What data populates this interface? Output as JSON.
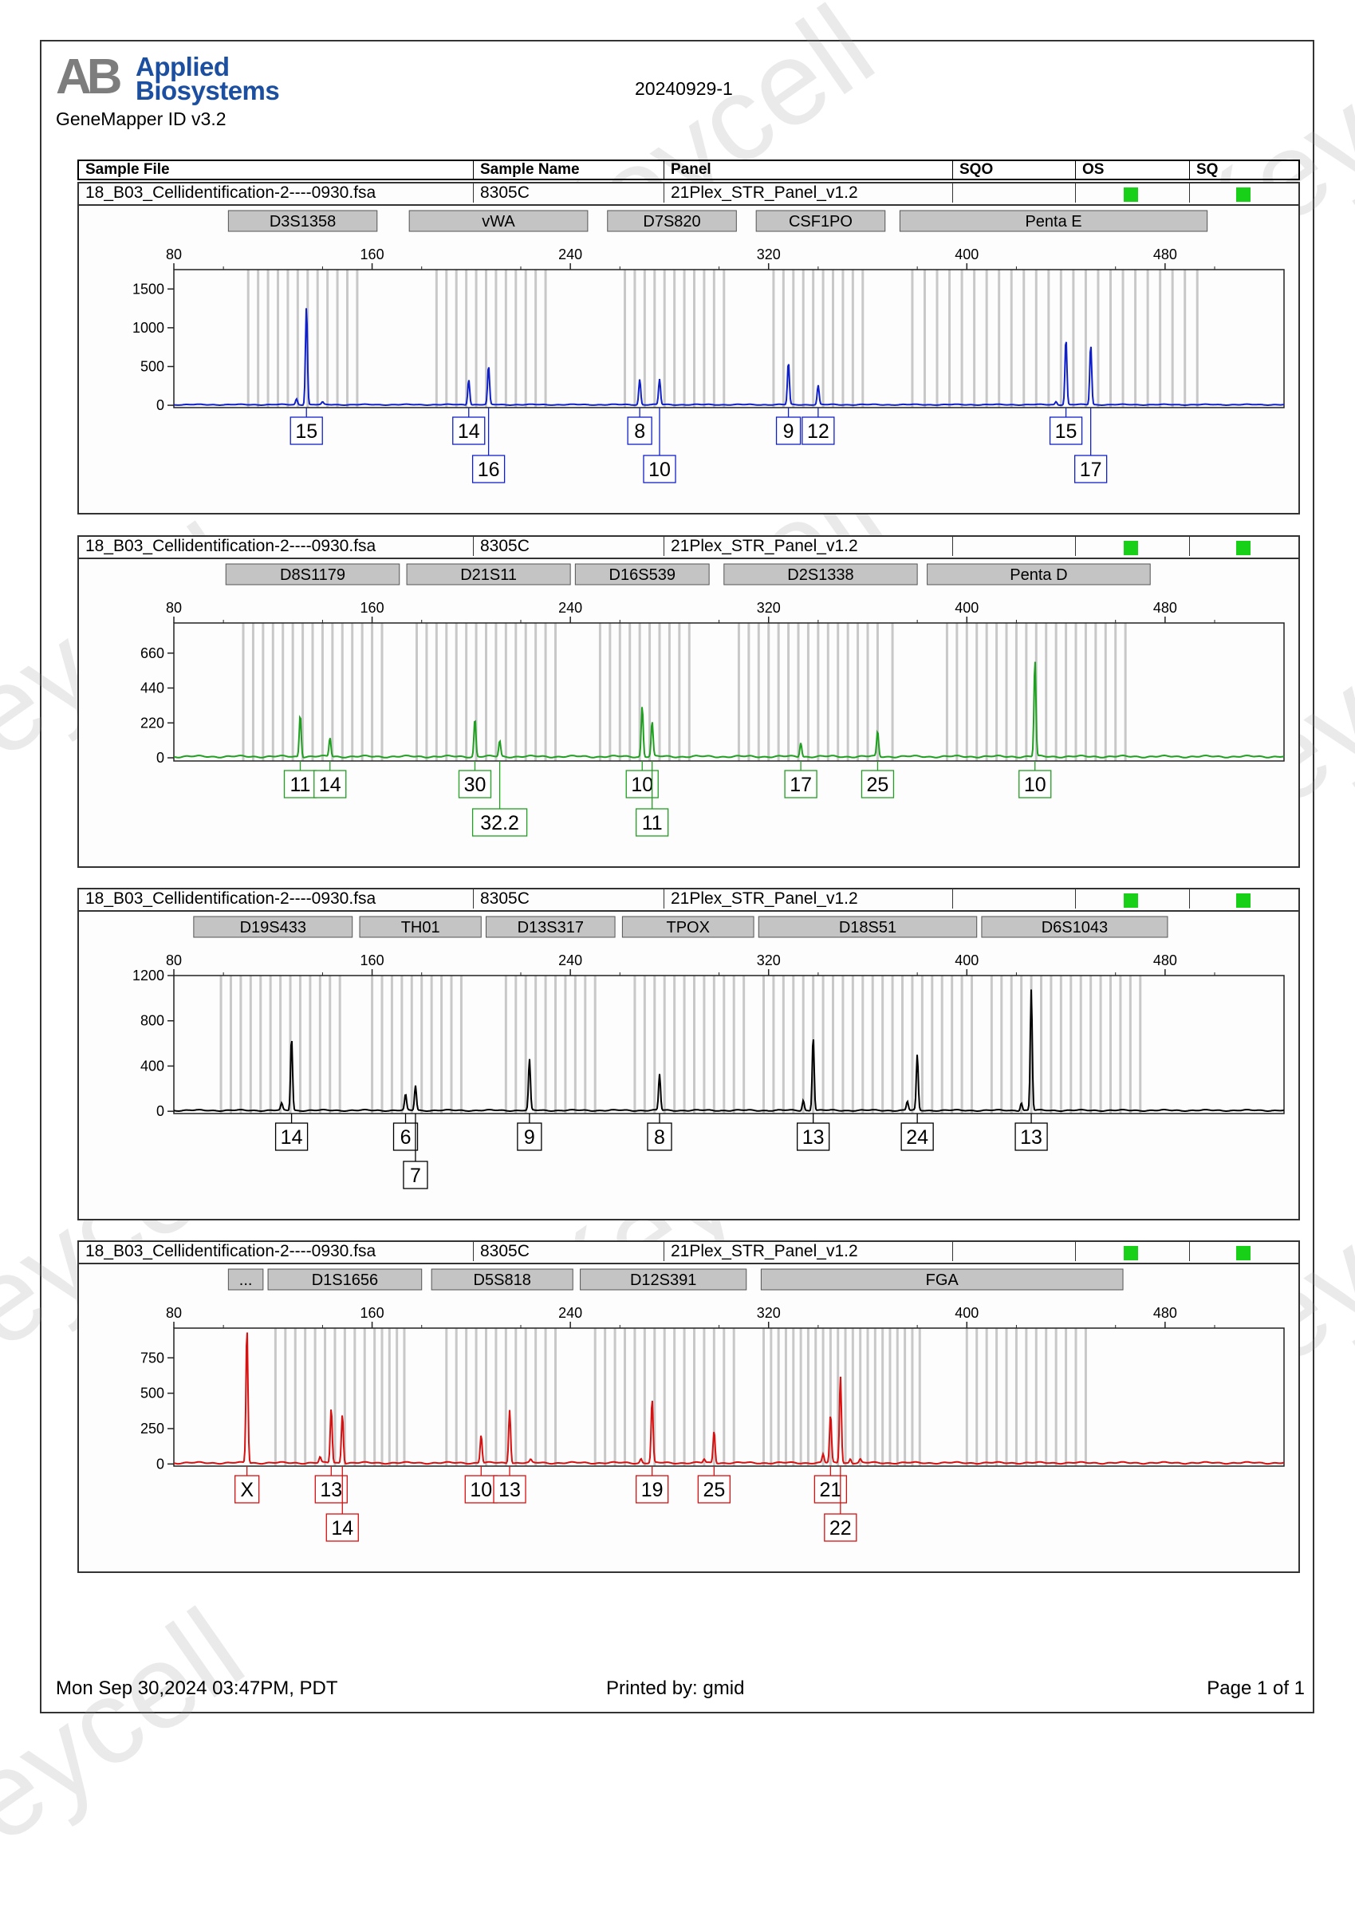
{
  "header": {
    "logo_ab": "AB",
    "logo_line1": "Applied",
    "logo_line2": "Biosystems",
    "software": "GeneMapper ID v3.2",
    "run_name": "20240929-1",
    "columns": [
      "Sample File",
      "Sample Name",
      "Panel",
      "SQO",
      "OS",
      "SQ"
    ]
  },
  "footer": {
    "date": "Mon Sep 30,2024 03:47PM, PDT",
    "printed_by": "Printed by: gmid",
    "page": "Page 1 of 1"
  },
  "watermark_text": "Keycell",
  "colors": {
    "blue": "#1020c8",
    "green": "#20a020",
    "black": "#000000",
    "red": "#d81010",
    "bin": "#c8c8c8",
    "qc_green": "#18d018"
  },
  "chart_data": [
    {
      "type": "line",
      "sample_file": "18_B03_Cellidentification-2----0930.fsa",
      "sample_name": "8305C",
      "panel": "21Plex_STR_Panel_v1.2",
      "dye_color": "#1020c8",
      "xlim": [
        80,
        528
      ],
      "x_ticks": [
        80,
        160,
        240,
        320,
        400,
        480
      ],
      "ylim": [
        -30,
        1750
      ],
      "y_ticks": [
        0,
        500,
        1000,
        1500
      ],
      "markers": [
        {
          "name": "D3S1358",
          "start": 102,
          "end": 162
        },
        {
          "name": "vWA",
          "start": 175,
          "end": 247
        },
        {
          "name": "D7S820",
          "start": 255,
          "end": 307
        },
        {
          "name": "CSF1PO",
          "start": 315,
          "end": 367
        },
        {
          "name": "Penta E",
          "start": 373,
          "end": 497
        }
      ],
      "bins": [
        110,
        114,
        118,
        122,
        126,
        130,
        134,
        138,
        142,
        146,
        150,
        154,
        186,
        190,
        194,
        198,
        202,
        206,
        210,
        214,
        218,
        222,
        226,
        230,
        262,
        266,
        270,
        274,
        278,
        282,
        286,
        290,
        294,
        298,
        302,
        322,
        326,
        330,
        334,
        338,
        342,
        346,
        350,
        354,
        358,
        378,
        383,
        388,
        393,
        398,
        403,
        408,
        413,
        418,
        423,
        428,
        433,
        438,
        443,
        448,
        453,
        458,
        463,
        468,
        473,
        478,
        483,
        488,
        493
      ],
      "peaks": [
        {
          "allele": "15",
          "x": 133.5,
          "y": 1270,
          "label_row": 0
        },
        {
          "allele": "14",
          "x": 199,
          "y": 330,
          "label_row": 0
        },
        {
          "allele": "16",
          "x": 207,
          "y": 500,
          "label_row": 1
        },
        {
          "allele": "8",
          "x": 268,
          "y": 330,
          "label_row": 0
        },
        {
          "allele": "10",
          "x": 276,
          "y": 330,
          "label_row": 1
        },
        {
          "allele": "9",
          "x": 328,
          "y": 550,
          "label_row": 0
        },
        {
          "allele": "12",
          "x": 340,
          "y": 250,
          "label_row": 0
        },
        {
          "allele": "15",
          "x": 440,
          "y": 860,
          "label_row": 0
        },
        {
          "allele": "17",
          "x": 450,
          "y": 780,
          "label_row": 1
        }
      ],
      "minor_peaks": [
        {
          "x": 129.5,
          "y": 75
        },
        {
          "x": 140,
          "y": 30
        },
        {
          "x": 436,
          "y": 40
        }
      ]
    },
    {
      "type": "line",
      "sample_file": "18_B03_Cellidentification-2----0930.fsa",
      "sample_name": "8305C",
      "panel": "21Plex_STR_Panel_v1.2",
      "dye_color": "#20a020",
      "xlim": [
        80,
        528
      ],
      "x_ticks": [
        80,
        160,
        240,
        320,
        400,
        480
      ],
      "ylim": [
        -20,
        850
      ],
      "y_ticks": [
        0,
        220,
        440,
        660
      ],
      "markers": [
        {
          "name": "D8S1179",
          "start": 101,
          "end": 171
        },
        {
          "name": "D21S11",
          "start": 174,
          "end": 240
        },
        {
          "name": "D16S539",
          "start": 242,
          "end": 296
        },
        {
          "name": "D2S1338",
          "start": 302,
          "end": 380
        },
        {
          "name": "Penta D",
          "start": 384,
          "end": 474
        }
      ],
      "bins": [
        108,
        112,
        116,
        120,
        124,
        128,
        132,
        136,
        140,
        144,
        148,
        152,
        156,
        160,
        164,
        178,
        182,
        186,
        190,
        194,
        198,
        202,
        206,
        210,
        214,
        218,
        222,
        226,
        230,
        234,
        252,
        256,
        260,
        264,
        268,
        272,
        276,
        280,
        284,
        288,
        308,
        312,
        316,
        320,
        324,
        328,
        332,
        336,
        340,
        344,
        348,
        352,
        356,
        360,
        364,
        370,
        392,
        396,
        400,
        404,
        408,
        412,
        416,
        420,
        424,
        428,
        432,
        436,
        440,
        444,
        448,
        452,
        456,
        460,
        464
      ],
      "peaks": [
        {
          "allele": "11",
          "x": 131,
          "y": 270,
          "label_row": 0
        },
        {
          "allele": "14",
          "x": 143,
          "y": 120,
          "label_row": 0
        },
        {
          "allele": "30",
          "x": 201.5,
          "y": 240,
          "label_row": 0
        },
        {
          "allele": "32.2",
          "x": 211.5,
          "y": 100,
          "label_row": 1
        },
        {
          "allele": "10",
          "x": 269,
          "y": 320,
          "label_row": 0
        },
        {
          "allele": "11",
          "x": 273,
          "y": 220,
          "label_row": 1
        },
        {
          "allele": "17",
          "x": 333,
          "y": 90,
          "label_row": 0
        },
        {
          "allele": "25",
          "x": 364,
          "y": 160,
          "label_row": 0
        },
        {
          "allele": "10",
          "x": 427.5,
          "y": 610,
          "label_row": 0
        }
      ],
      "minor_peaks": []
    },
    {
      "type": "line",
      "sample_file": "18_B03_Cellidentification-2----0930.fsa",
      "sample_name": "8305C",
      "panel": "21Plex_STR_Panel_v1.2",
      "dye_color": "#000000",
      "xlim": [
        80,
        528
      ],
      "x_ticks": [
        80,
        160,
        240,
        320,
        400,
        480
      ],
      "ylim": [
        -20,
        1200
      ],
      "y_ticks": [
        0,
        400,
        800,
        1200
      ],
      "markers": [
        {
          "name": "D19S433",
          "start": 88,
          "end": 152
        },
        {
          "name": "TH01",
          "start": 155,
          "end": 204
        },
        {
          "name": "D13S317",
          "start": 206,
          "end": 258
        },
        {
          "name": "TPOX",
          "start": 261,
          "end": 314
        },
        {
          "name": "D18S51",
          "start": 316,
          "end": 404
        },
        {
          "name": "D6S1043",
          "start": 406,
          "end": 481
        }
      ],
      "bins": [
        99,
        103,
        107,
        111,
        115,
        119,
        123,
        127,
        131,
        135,
        139,
        143,
        147,
        160,
        164,
        168,
        172,
        176,
        180,
        184,
        188,
        192,
        196,
        214,
        218,
        222,
        226,
        230,
        234,
        238,
        242,
        246,
        250,
        266,
        270,
        274,
        278,
        282,
        286,
        290,
        294,
        298,
        302,
        306,
        310,
        318,
        322,
        326,
        330,
        334,
        338,
        342,
        346,
        350,
        354,
        358,
        362,
        366,
        370,
        374,
        378,
        382,
        386,
        390,
        394,
        398,
        402,
        410,
        414,
        418,
        422,
        426,
        430,
        434,
        438,
        442,
        446,
        450,
        454,
        458,
        462,
        466,
        470
      ],
      "peaks": [
        {
          "allele": "14",
          "x": 127.5,
          "y": 650,
          "label_row": 0
        },
        {
          "allele": "6",
          "x": 173.5,
          "y": 140,
          "label_row": 0
        },
        {
          "allele": "7",
          "x": 177.5,
          "y": 220,
          "label_row": 1
        },
        {
          "allele": "9",
          "x": 223.5,
          "y": 450,
          "label_row": 0
        },
        {
          "allele": "8",
          "x": 276,
          "y": 320,
          "label_row": 0
        },
        {
          "allele": "13",
          "x": 338,
          "y": 660,
          "label_row": 0
        },
        {
          "allele": "24",
          "x": 380,
          "y": 490,
          "label_row": 0
        },
        {
          "allele": "13",
          "x": 426,
          "y": 1070,
          "label_row": 0
        }
      ],
      "minor_peaks": [
        {
          "x": 123.5,
          "y": 60
        },
        {
          "x": 334,
          "y": 90
        },
        {
          "x": 376,
          "y": 80
        },
        {
          "x": 422,
          "y": 70
        }
      ]
    },
    {
      "type": "line",
      "sample_file": "18_B03_Cellidentification-2----0930.fsa",
      "sample_name": "8305C",
      "panel": "21Plex_STR_Panel_v1.2",
      "dye_color": "#d81010",
      "xlim": [
        80,
        528
      ],
      "x_ticks": [
        80,
        160,
        240,
        320,
        400,
        480
      ],
      "ylim": [
        -15,
        960
      ],
      "y_ticks": [
        0,
        250,
        500,
        750
      ],
      "markers": [
        {
          "name": "...",
          "start": 102,
          "end": 116
        },
        {
          "name": "D1S1656",
          "start": 118,
          "end": 180
        },
        {
          "name": "D5S818",
          "start": 184,
          "end": 241
        },
        {
          "name": "D12S391",
          "start": 244,
          "end": 311
        },
        {
          "name": "FGA",
          "start": 317,
          "end": 463
        }
      ],
      "bins": [
        121,
        125,
        129,
        133,
        137,
        141,
        145,
        149,
        153,
        157,
        161,
        164,
        167,
        170,
        173,
        190,
        194,
        198,
        202,
        206,
        210,
        214,
        218,
        222,
        226,
        230,
        234,
        250,
        254,
        258,
        262,
        266,
        270,
        274,
        278,
        282,
        286,
        290,
        294,
        298,
        302,
        306,
        318,
        321,
        324,
        327,
        330,
        333,
        336,
        339,
        342,
        345,
        348,
        351,
        354,
        357,
        360,
        363,
        366,
        369,
        372,
        375,
        378,
        381,
        400,
        404,
        408,
        412,
        416,
        420,
        424,
        428,
        432,
        436,
        440,
        444,
        448
      ],
      "peaks": [
        {
          "allele": "X",
          "x": 109.5,
          "y": 960,
          "label_row": 0
        },
        {
          "allele": "13",
          "x": 143.5,
          "y": 390,
          "label_row": 0
        },
        {
          "allele": "14",
          "x": 148,
          "y": 350,
          "label_row": 1
        },
        {
          "allele": "10",
          "x": 204,
          "y": 200,
          "label_row": 0
        },
        {
          "allele": "13",
          "x": 215.5,
          "y": 380,
          "label_row": 0
        },
        {
          "allele": "19",
          "x": 273,
          "y": 450,
          "label_row": 0
        },
        {
          "allele": "25",
          "x": 298,
          "y": 230,
          "label_row": 0
        },
        {
          "allele": "21",
          "x": 345,
          "y": 340,
          "label_row": 0
        },
        {
          "allele": "22",
          "x": 349,
          "y": 620,
          "label_row": 1
        }
      ],
      "minor_peaks": [
        {
          "x": 139,
          "y": 40
        },
        {
          "x": 268.5,
          "y": 30
        },
        {
          "x": 294,
          "y": 25
        },
        {
          "x": 342,
          "y": 60
        },
        {
          "x": 353,
          "y": 30
        },
        {
          "x": 357,
          "y": 25
        },
        {
          "x": 224,
          "y": 20
        }
      ]
    }
  ]
}
